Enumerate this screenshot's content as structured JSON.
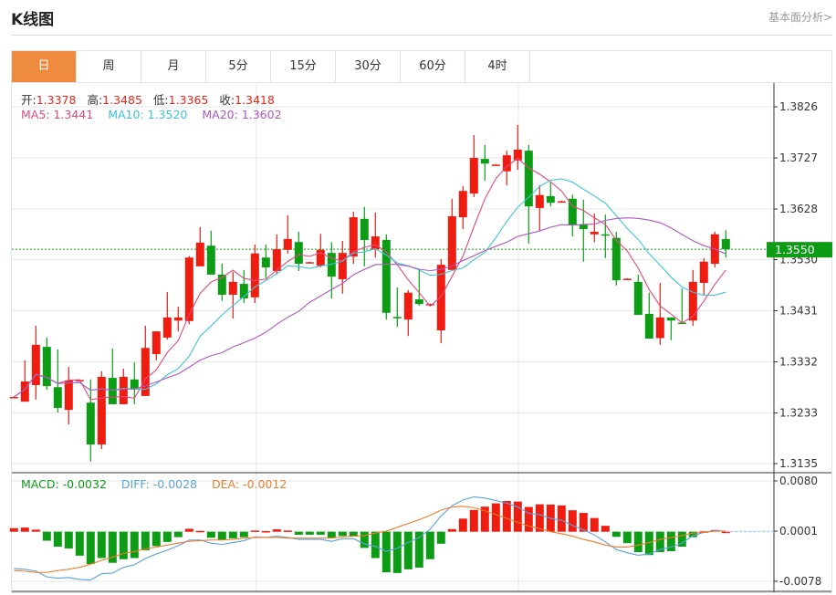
{
  "header": {
    "title": "K线图",
    "link": "基本面分析>"
  },
  "tabs": [
    {
      "label": "日",
      "active": true
    },
    {
      "label": "周"
    },
    {
      "label": "月"
    },
    {
      "label": "5分"
    },
    {
      "label": "15分"
    },
    {
      "label": "30分"
    },
    {
      "label": "60分"
    },
    {
      "label": "4时"
    }
  ],
  "ohlc_info": {
    "open_label": "开:",
    "open": "1.3378",
    "high_label": "高:",
    "high": "1.3485",
    "low_label": "低:",
    "low": "1.3365",
    "close_label": "收:",
    "close": "1.3418"
  },
  "ma_info": {
    "ma5": "MA5: 1.3441",
    "ma10": "MA10: 1.3520",
    "ma20": "MA20: 1.3602"
  },
  "macd_info": {
    "macd": "MACD: -0.0032",
    "diff": "DIFF: -0.0028",
    "dea": "DEA: -0.0012"
  },
  "colors": {
    "up": "#f01c10",
    "down": "#0c9d15",
    "ma5": "#e4487f",
    "ma10": "#3cc5d6",
    "ma20": "#b056c2",
    "diff": "#5aa2df",
    "dea": "#ee7c2c",
    "active_tab": "#ef8b3f",
    "last_price": "#0c9d15"
  },
  "chart_data": [
    {
      "type": "candlestick",
      "title": "",
      "ylim": [
        1.3135,
        1.3826
      ],
      "y_ticks": [
        "1.3826",
        "1.3727",
        "1.3628",
        "1.3530",
        "1.3431",
        "1.3332",
        "1.3233",
        "1.3135"
      ],
      "last_price": "1.3550",
      "grid": true,
      "ma_periods": [
        5,
        10,
        20
      ],
      "candles_ohlc": [
        [
          1.3264,
          1.3265,
          1.3263,
          1.3264
        ],
        [
          1.3255,
          1.3335,
          1.3255,
          1.3294
        ],
        [
          1.3287,
          1.3402,
          1.3259,
          1.3365
        ],
        [
          1.3361,
          1.3379,
          1.3278,
          1.3285
        ],
        [
          1.3283,
          1.3356,
          1.3234,
          1.3243
        ],
        [
          1.3239,
          1.3322,
          1.3211,
          1.3296
        ],
        [
          1.3296,
          1.3298,
          1.3295,
          1.3297
        ],
        [
          1.3253,
          1.3298,
          1.3139,
          1.3172
        ],
        [
          1.3172,
          1.3314,
          1.3163,
          1.3303
        ],
        [
          1.3301,
          1.3358,
          1.325,
          1.325
        ],
        [
          1.325,
          1.3319,
          1.325,
          1.3303
        ],
        [
          1.3298,
          1.3331,
          1.325,
          1.328
        ],
        [
          1.3266,
          1.3402,
          1.3266,
          1.3359
        ],
        [
          1.3347,
          1.3391,
          1.3335,
          1.3391
        ],
        [
          1.3379,
          1.3467,
          1.3375,
          1.3418
        ],
        [
          1.3412,
          1.3439,
          1.3391,
          1.3418
        ],
        [
          1.3411,
          1.3537,
          1.3405,
          1.3534
        ],
        [
          1.3517,
          1.3593,
          1.3517,
          1.3563
        ],
        [
          1.3557,
          1.3586,
          1.3501,
          1.3501
        ],
        [
          1.3501,
          1.3522,
          1.345,
          1.3462
        ],
        [
          1.3462,
          1.3506,
          1.3416,
          1.3487
        ],
        [
          1.3483,
          1.351,
          1.3446,
          1.3455
        ],
        [
          1.3457,
          1.3559,
          1.3446,
          1.3542
        ],
        [
          1.3534,
          1.3559,
          1.3494,
          1.3515
        ],
        [
          1.3508,
          1.3579,
          1.3501,
          1.355
        ],
        [
          1.3549,
          1.3616,
          1.3542,
          1.357
        ],
        [
          1.3564,
          1.3584,
          1.3508,
          1.3522
        ],
        [
          1.3524,
          1.3526,
          1.3523,
          1.3525
        ],
        [
          1.3518,
          1.358,
          1.3515,
          1.3549
        ],
        [
          1.3543,
          1.3564,
          1.3455,
          1.3497
        ],
        [
          1.3492,
          1.3566,
          1.3464,
          1.3543
        ],
        [
          1.3536,
          1.3623,
          1.3522,
          1.3612
        ],
        [
          1.3609,
          1.3632,
          1.3517,
          1.3568
        ],
        [
          1.355,
          1.3621,
          1.3534,
          1.3575
        ],
        [
          1.3568,
          1.3579,
          1.3414,
          1.3427
        ],
        [
          1.3419,
          1.3476,
          1.34,
          1.3418
        ],
        [
          1.3414,
          1.3471,
          1.3382,
          1.3466
        ],
        [
          1.3453,
          1.351,
          1.3441,
          1.3444
        ],
        [
          1.3443,
          1.3445,
          1.3442,
          1.3444
        ],
        [
          1.3393,
          1.3531,
          1.3368,
          1.352
        ],
        [
          1.351,
          1.3648,
          1.351,
          1.3614
        ],
        [
          1.3612,
          1.3672,
          1.3589,
          1.3663
        ],
        [
          1.3658,
          1.3771,
          1.3651,
          1.3727
        ],
        [
          1.3725,
          1.3752,
          1.3683,
          1.3716
        ],
        [
          1.3713,
          1.3715,
          1.3712,
          1.3714
        ],
        [
          1.3701,
          1.3741,
          1.3674,
          1.3732
        ],
        [
          1.3722,
          1.3791,
          1.3704,
          1.3743
        ],
        [
          1.3741,
          1.3752,
          1.3561,
          1.3633
        ],
        [
          1.363,
          1.3674,
          1.3586,
          1.3655
        ],
        [
          1.3653,
          1.3679,
          1.3633,
          1.364
        ],
        [
          1.3642,
          1.3644,
          1.3641,
          1.3643
        ],
        [
          1.3648,
          1.3656,
          1.3575,
          1.3598
        ],
        [
          1.3598,
          1.3646,
          1.3526,
          1.3589
        ],
        [
          1.3579,
          1.3619,
          1.3564,
          1.3584
        ],
        [
          1.3579,
          1.3617,
          1.3533,
          1.3577
        ],
        [
          1.3572,
          1.3584,
          1.348,
          1.349
        ],
        [
          1.3492,
          1.3494,
          1.3491,
          1.3493
        ],
        [
          1.3487,
          1.3501,
          1.3423,
          1.3423
        ],
        [
          1.3425,
          1.3466,
          1.3377,
          1.3377
        ],
        [
          1.3378,
          1.3485,
          1.3365,
          1.3418
        ],
        [
          1.3418,
          1.3418,
          1.3374,
          1.3412
        ],
        [
          1.3408,
          1.3474,
          1.3407,
          1.3407
        ],
        [
          1.3412,
          1.351,
          1.3402,
          1.3487
        ],
        [
          1.3485,
          1.3533,
          1.3462,
          1.3526
        ],
        [
          1.3522,
          1.3584,
          1.3515,
          1.3579
        ],
        [
          1.357,
          1.3587,
          1.3534,
          1.355
        ]
      ]
    },
    {
      "type": "bar+line",
      "title": "",
      "ylim": [
        -0.0078,
        0.008
      ],
      "y_ticks": [
        "0.0080",
        "0.0001",
        "-0.0078"
      ],
      "macd_hist": [
        0.00056,
        0.00066,
        0.00033,
        -0.00141,
        -0.00235,
        -0.00263,
        -0.00376,
        -0.00508,
        -0.00414,
        -0.00489,
        -0.00432,
        -0.00414,
        -0.00291,
        -0.00226,
        -0.0016,
        -0.00085,
        0.00047,
        0.00014,
        -0.00094,
        -0.00132,
        -0.00103,
        -0.00085,
        0.00019,
        0.0001,
        0.00038,
        0.00019,
        -0.00047,
        -0.00047,
        -0.00047,
        -0.00094,
        -0.00066,
        -0.00075,
        -0.00254,
        -0.00414,
        -0.00639,
        -0.00649,
        -0.00592,
        -0.00564,
        -0.00432,
        -0.00188,
        0.00042,
        0.00207,
        0.00343,
        0.00395,
        0.00447,
        0.00484,
        0.00475,
        0.0039,
        0.00432,
        0.00428,
        0.00414,
        0.00338,
        0.00296,
        0.00216,
        0.00094,
        -0.0008,
        -0.00179,
        -0.0032,
        -0.00367,
        -0.0032,
        -0.00306,
        -0.00235,
        -0.00085,
        5e-05,
        0.00028,
        0.0
      ],
      "dea": [
        -0.0061,
        -0.0062,
        -0.0064,
        -0.0064,
        -0.0061,
        -0.0059,
        -0.0056,
        -0.0051,
        -0.0045,
        -0.004,
        -0.0034,
        -0.0031,
        -0.0027,
        -0.0024,
        -0.0021,
        -0.0018,
        -0.0015,
        -0.0014,
        -0.0013,
        -0.0013,
        -0.0012,
        -0.001,
        -0.0009,
        -0.0009,
        -0.0009,
        -0.001,
        -0.001,
        -0.001,
        -0.001,
        -0.001,
        -0.0008,
        -0.0007,
        -0.0006,
        -0.0002,
        0.0001,
        0.0007,
        0.0013,
        0.0019,
        0.0026,
        0.0034,
        0.0039,
        0.004,
        0.0038,
        0.0033,
        0.0027,
        0.0021,
        0.0015,
        0.0009,
        0.0005,
        0.0,
        -0.0003,
        -0.0007,
        -0.0012,
        -0.0016,
        -0.0021,
        -0.0024,
        -0.0024,
        -0.0021,
        -0.0017,
        -0.0012,
        -0.0009,
        -0.0006,
        -0.0002,
        -0.0001,
        0.0001,
        0.0001
      ],
      "diff": [
        -0.0058,
        -0.0059,
        -0.0062,
        -0.0071,
        -0.0073,
        -0.0072,
        -0.0075,
        -0.0076,
        -0.0066,
        -0.0065,
        -0.0056,
        -0.0052,
        -0.0042,
        -0.0035,
        -0.0029,
        -0.0022,
        -0.0013,
        -0.0013,
        -0.0018,
        -0.002,
        -0.0017,
        -0.0014,
        -0.0008,
        -0.0009,
        -0.0007,
        -0.0009,
        -0.0012,
        -0.0012,
        -0.0012,
        -0.0015,
        -0.0011,
        -0.0011,
        -0.0019,
        -0.0023,
        -0.0031,
        -0.0026,
        -0.0017,
        -0.0009,
        0.0004,
        0.0025,
        0.0041,
        0.005,
        0.0055,
        0.0053,
        0.0049,
        0.0045,
        0.0039,
        0.0029,
        0.0027,
        0.0021,
        0.0018,
        0.001,
        0.0003,
        -0.0005,
        -0.0016,
        -0.0028,
        -0.0033,
        -0.0037,
        -0.0035,
        -0.0028,
        -0.0024,
        -0.0018,
        -0.0006,
        -0.0001,
        0.0002,
        0.0001
      ]
    }
  ]
}
